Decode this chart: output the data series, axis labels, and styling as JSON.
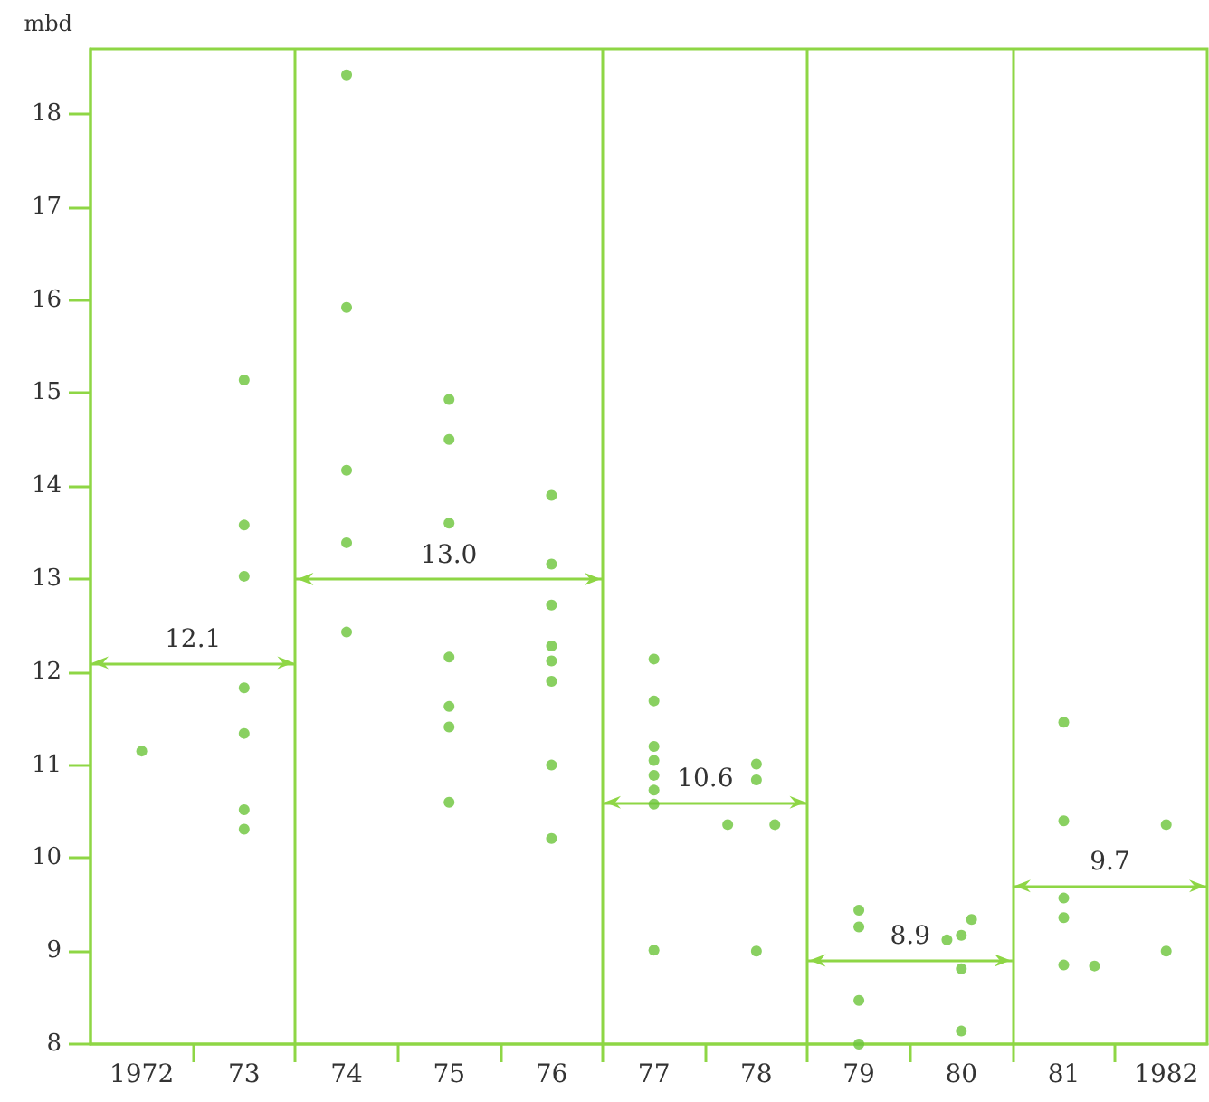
{
  "chart_data": {
    "type": "scatter",
    "ylabel": "mbd",
    "xlim": [
      1971.5,
      1982.4
    ],
    "ylim": [
      8,
      18.7
    ],
    "xticks": [
      {
        "value": 1972,
        "label": "1972"
      },
      {
        "value": 1972.5,
        "label": null
      },
      {
        "value": 1973,
        "label": "73"
      },
      {
        "value": 1973.5,
        "label": null
      },
      {
        "value": 1974,
        "label": "74"
      },
      {
        "value": 1974.5,
        "label": null
      },
      {
        "value": 1975,
        "label": "75"
      },
      {
        "value": 1975.5,
        "label": null
      },
      {
        "value": 1976,
        "label": "76"
      },
      {
        "value": 1976.5,
        "label": null
      },
      {
        "value": 1977,
        "label": "77"
      },
      {
        "value": 1977.5,
        "label": null
      },
      {
        "value": 1978,
        "label": "78"
      },
      {
        "value": 1978.5,
        "label": null
      },
      {
        "value": 1979,
        "label": "79"
      },
      {
        "value": 1979.5,
        "label": null
      },
      {
        "value": 1980,
        "label": "80"
      },
      {
        "value": 1980.5,
        "label": null
      },
      {
        "value": 1981,
        "label": "81"
      },
      {
        "value": 1981.5,
        "label": null
      },
      {
        "value": 1982,
        "label": "1982"
      }
    ],
    "yticks": [
      8,
      9,
      10,
      11,
      12,
      13,
      14,
      15,
      16,
      17,
      18
    ],
    "grid": false,
    "series": [
      {
        "marker": "circle",
        "color": "#6cc43a",
        "x": [
          1972,
          1973,
          1973,
          1973,
          1973,
          1973,
          1973,
          1973,
          1974,
          1974,
          1974,
          1974,
          1974,
          1975,
          1975,
          1975,
          1975,
          1975,
          1975,
          1975,
          1976,
          1976,
          1976,
          1976,
          1976,
          1976,
          1976,
          1976,
          1977,
          1977,
          1977,
          1977,
          1977,
          1977,
          1977,
          1977,
          1978,
          1978,
          1978,
          1977.72,
          1978.18,
          1979,
          1979,
          1979,
          1979,
          1979.86,
          1980,
          1980.1,
          1980,
          1980,
          1981,
          1981,
          1981,
          1981,
          1981,
          1981.3,
          1982,
          1982
        ],
        "values": [
          11.15,
          15.14,
          13.58,
          13.03,
          11.83,
          11.34,
          10.52,
          10.31,
          18.42,
          15.92,
          14.17,
          13.39,
          12.43,
          14.93,
          14.5,
          13.6,
          12.16,
          11.63,
          11.41,
          10.6,
          13.9,
          13.16,
          12.72,
          12.28,
          12.12,
          11.9,
          11.0,
          10.21,
          12.14,
          11.69,
          11.2,
          11.05,
          10.89,
          10.73,
          10.58,
          9.01,
          11.01,
          10.84,
          9.0,
          10.36,
          10.36,
          9.44,
          9.26,
          8.47,
          8.0,
          9.12,
          9.17,
          9.34,
          8.81,
          8.14,
          11.46,
          10.4,
          9.57,
          9.36,
          8.85,
          8.84,
          10.36,
          9.0
        ]
      }
    ],
    "ref_lines": [
      {
        "axis": "x",
        "value": 1973.5,
        "color": "#8ed645"
      },
      {
        "axis": "x",
        "value": 1976.5,
        "color": "#8ed645"
      },
      {
        "axis": "x",
        "value": 1978.5,
        "color": "#8ed645"
      },
      {
        "axis": "x",
        "value": 1980.5,
        "color": "#8ed645"
      },
      {
        "axis": "y",
        "value": 12.1,
        "label": "12.1",
        "color": "#8ed645"
      },
      {
        "axis": "y",
        "value": 13.0,
        "label": "13.0",
        "color": "#8ed645"
      },
      {
        "axis": "y",
        "value": 10.6,
        "label": "10.6",
        "color": "#8ed645"
      },
      {
        "axis": "y",
        "value": 8.9,
        "label": "8.9",
        "color": "#8ed645"
      },
      {
        "axis": "y",
        "value": 9.7,
        "label": "9.7",
        "color": "#8ed645"
      }
    ]
  }
}
